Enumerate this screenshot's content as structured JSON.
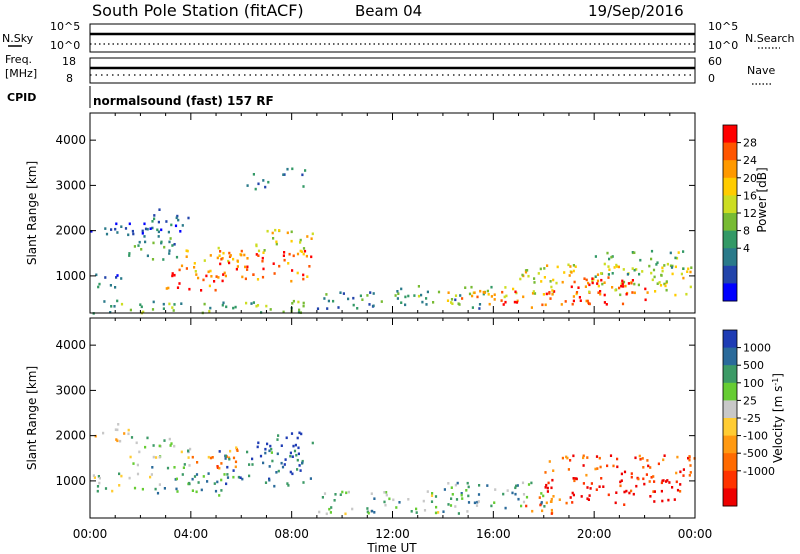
{
  "header": {
    "title": "South Pole Station (fitACF)",
    "beam": "Beam 04",
    "date": "19/Sep/2016"
  },
  "nsky_panel": {
    "left_label": "N.Sky",
    "right_label": "N.Search",
    "left_ticks": [
      "10^5",
      "10^0"
    ],
    "right_ticks": [
      "10^5",
      "10^0"
    ]
  },
  "freq_panel": {
    "left_label_1": "Freq.",
    "left_label_2": "[MHz]",
    "left_ticks": [
      "18",
      "8"
    ],
    "right_label": "Nave",
    "right_ticks": [
      "60",
      "0"
    ]
  },
  "cpid": {
    "label": "CPID",
    "mode": "normalsound (fast) 157 RF"
  },
  "chart_data": [
    {
      "type": "heatmap",
      "name": "Power",
      "ylabel": "Slant Range [km]",
      "xlabel": "Time UT",
      "y_ticks": [
        "1000",
        "2000",
        "3000",
        "4000"
      ],
      "ylim": [
        180,
        4600
      ],
      "colorbar": {
        "label": "Power [dB]",
        "ticks": [
          "28",
          "24",
          "20",
          "16",
          "12",
          "8",
          "4"
        ],
        "colors": [
          "#ff0000",
          "#ff5500",
          "#ff9900",
          "#ffcc00",
          "#ccdd22",
          "#77bb33",
          "#339966",
          "#2a7a8a",
          "#2244aa",
          "#0000ff"
        ]
      },
      "regions": [
        {
          "t0": 0.0,
          "t1": 1.2,
          "r0": 700,
          "r1": 1100,
          "level": 0.2
        },
        {
          "t0": 0.0,
          "t1": 2.5,
          "r0": 1900,
          "r1": 2300,
          "level": 0.15
        },
        {
          "t0": 1.5,
          "t1": 3.5,
          "r0": 1300,
          "r1": 2000,
          "level": 0.3
        },
        {
          "t0": 2.0,
          "t1": 4.0,
          "r0": 2000,
          "r1": 2500,
          "level": 0.2
        },
        {
          "t0": 2.5,
          "t1": 5.0,
          "r0": 700,
          "r1": 1100,
          "level": 0.85
        },
        {
          "t0": 3.5,
          "t1": 6.0,
          "r0": 1100,
          "r1": 1700,
          "level": 0.7
        },
        {
          "t0": 5.0,
          "t1": 8.8,
          "r0": 900,
          "r1": 1600,
          "level": 0.85
        },
        {
          "t0": 6.5,
          "t1": 8.8,
          "r0": 1500,
          "r1": 2100,
          "level": 0.6
        },
        {
          "t0": 6.2,
          "t1": 7.2,
          "r0": 2900,
          "r1": 3300,
          "level": 0.25
        },
        {
          "t0": 7.5,
          "t1": 8.5,
          "r0": 3000,
          "r1": 3400,
          "level": 0.2
        },
        {
          "t0": 0.0,
          "t1": 9.0,
          "r0": 200,
          "r1": 500,
          "level": 0.4
        },
        {
          "t0": 9.0,
          "t1": 12.0,
          "r0": 300,
          "r1": 700,
          "level": 0.3
        },
        {
          "t0": 12.0,
          "t1": 16.0,
          "r0": 300,
          "r1": 800,
          "level": 0.35
        },
        {
          "t0": 14.0,
          "t1": 17.0,
          "r0": 400,
          "r1": 800,
          "level": 0.7
        },
        {
          "t0": 16.0,
          "t1": 20.0,
          "r0": 300,
          "r1": 700,
          "level": 0.92
        },
        {
          "t0": 17.0,
          "t1": 24.0,
          "r0": 600,
          "r1": 1300,
          "level": 0.6
        },
        {
          "t0": 19.0,
          "t1": 22.0,
          "r0": 400,
          "r1": 1000,
          "level": 0.95
        },
        {
          "t0": 20.0,
          "t1": 24.0,
          "r0": 1000,
          "r1": 1600,
          "level": 0.45
        }
      ]
    },
    {
      "type": "heatmap",
      "name": "Velocity",
      "ylabel": "Slant Range [km]",
      "xlabel": "Time UT",
      "y_ticks": [
        "1000",
        "2000",
        "3000",
        "4000"
      ],
      "ylim": [
        180,
        4600
      ],
      "colorbar": {
        "label": "Velocity [m s",
        "label_sup": "-1",
        "label_end": "]",
        "ticks": [
          "1000",
          "500",
          "100",
          "25",
          "-25",
          "-100",
          "-500",
          "-1000"
        ],
        "colors": [
          "#1e3cb4",
          "#2a6a9a",
          "#3c9a66",
          "#66cc33",
          "#c8c8c8",
          "#ffcc33",
          "#ff9911",
          "#ff6a00",
          "#ff3300",
          "#ee0000"
        ]
      },
      "regions": [
        {
          "t0": 0.0,
          "t1": 1.5,
          "r0": 1900,
          "r1": 2300,
          "level": 0.45
        },
        {
          "t0": 0.0,
          "t1": 2.5,
          "r0": 800,
          "r1": 1200,
          "level": 0.6
        },
        {
          "t0": 1.5,
          "t1": 4.0,
          "r0": 1300,
          "r1": 2000,
          "level": 0.65
        },
        {
          "t0": 2.5,
          "t1": 5.5,
          "r0": 700,
          "r1": 1200,
          "level": 0.75
        },
        {
          "t0": 4.0,
          "t1": 6.0,
          "r0": 1300,
          "r1": 1800,
          "level": 0.3
        },
        {
          "t0": 5.0,
          "t1": 8.8,
          "r0": 900,
          "r1": 1700,
          "level": 0.85
        },
        {
          "t0": 6.5,
          "t1": 8.8,
          "r0": 1600,
          "r1": 2100,
          "level": 0.9
        },
        {
          "t0": 9.0,
          "t1": 15.0,
          "r0": 300,
          "r1": 800,
          "level": 0.65
        },
        {
          "t0": 14.0,
          "t1": 18.0,
          "r0": 400,
          "r1": 1000,
          "level": 0.7
        },
        {
          "t0": 17.5,
          "t1": 23.5,
          "r0": 500,
          "r1": 1100,
          "level": 0.05
        },
        {
          "t0": 18.0,
          "t1": 24.0,
          "r0": 1100,
          "r1": 1600,
          "level": 0.2
        },
        {
          "t0": 17.0,
          "t1": 19.0,
          "r0": 300,
          "r1": 700,
          "level": 0.3
        }
      ],
      "x_ticks": [
        "00:00",
        "04:00",
        "08:00",
        "12:00",
        "16:00",
        "20:00",
        "00:00"
      ]
    }
  ]
}
